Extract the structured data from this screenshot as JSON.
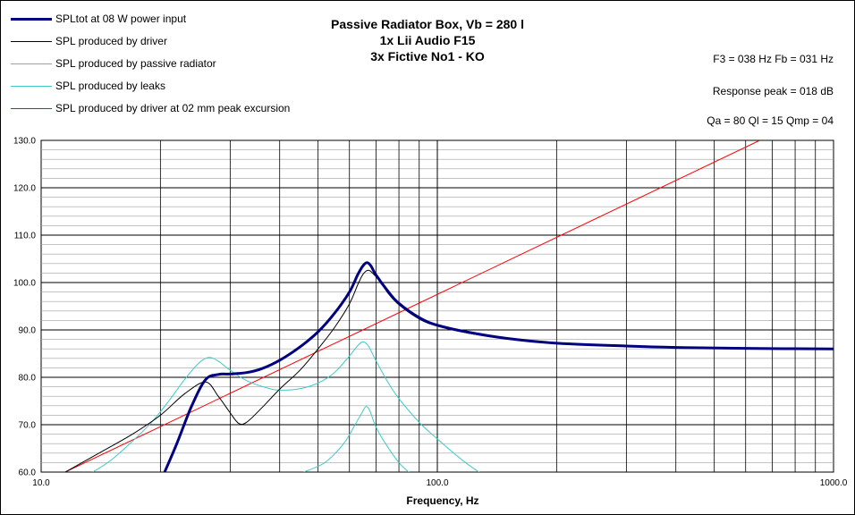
{
  "chart_data": {
    "type": "line",
    "title": [
      "Passive Radiator Box, Vb = 280 l",
      "1x Lii Audio F15",
      "3x Fictive No1 - KO"
    ],
    "info": [
      "F3 = 038 Hz  Fb = 031 Hz",
      "Response  peak = 018 dB",
      "Qa = 80  Ql = 15  Qmp = 04"
    ],
    "xlabel": "Frequency, Hz",
    "ylabel": "",
    "x_scale": "log",
    "xlim": [
      10,
      1000
    ],
    "ylim": [
      60,
      130
    ],
    "x_ticks": [
      "10.0",
      "100.0",
      "1000.0"
    ],
    "y_ticks": [
      "60.0",
      "70.0",
      "80.0",
      "90.0",
      "100.0",
      "110.0",
      "120.0",
      "130.0"
    ],
    "grid": true,
    "legend_position": "top-left",
    "series": [
      {
        "name": "SPLtot at 08 W power input",
        "color": "#000080",
        "width": 3,
        "points": [
          [
            20.5,
            60
          ],
          [
            22,
            66
          ],
          [
            24,
            74
          ],
          [
            26,
            79.5
          ],
          [
            28,
            80.6
          ],
          [
            30,
            80.7
          ],
          [
            33,
            81
          ],
          [
            36,
            81.8
          ],
          [
            40,
            83.6
          ],
          [
            45,
            86.4
          ],
          [
            50,
            89.6
          ],
          [
            55,
            93.5
          ],
          [
            60,
            98
          ],
          [
            63,
            101.7
          ],
          [
            65,
            103.6
          ],
          [
            66.5,
            104.2
          ],
          [
            68,
            103.5
          ],
          [
            70,
            101.6
          ],
          [
            75,
            98.2
          ],
          [
            80,
            95.6
          ],
          [
            90,
            92.6
          ],
          [
            100,
            91
          ],
          [
            120,
            89.5
          ],
          [
            150,
            88.2
          ],
          [
            200,
            87.2
          ],
          [
            300,
            86.6
          ],
          [
            400,
            86.3
          ],
          [
            600,
            86.1
          ],
          [
            1000,
            86
          ]
        ]
      },
      {
        "name": "SPL produced by driver",
        "color": "#000000",
        "width": 1,
        "points": [
          [
            11.5,
            60
          ],
          [
            14,
            64
          ],
          [
            17,
            68
          ],
          [
            20,
            72
          ],
          [
            23,
            76.5
          ],
          [
            26,
            79
          ],
          [
            28,
            76
          ],
          [
            30,
            72.5
          ],
          [
            31.5,
            70.3
          ],
          [
            33,
            70.5
          ],
          [
            36,
            73.5
          ],
          [
            40,
            77.5
          ],
          [
            45,
            81.5
          ],
          [
            50,
            86
          ],
          [
            55,
            90.5
          ],
          [
            60,
            95.5
          ],
          [
            63,
            99.6
          ],
          [
            65,
            101.8
          ],
          [
            67,
            102.6
          ],
          [
            69,
            101.8
          ],
          [
            72,
            100
          ],
          [
            75,
            97.8
          ],
          [
            80,
            95.3
          ],
          [
            90,
            92.3
          ],
          [
            100,
            90.8
          ],
          [
            120,
            89.3
          ],
          [
            150,
            88.1
          ],
          [
            200,
            87.2
          ],
          [
            300,
            86.5
          ],
          [
            500,
            86.2
          ],
          [
            1000,
            86
          ]
        ]
      },
      {
        "name": "SPL produced by passive radiator",
        "color": "#40C8C8",
        "width": 1,
        "points": [
          [
            13.5,
            60
          ],
          [
            15,
            62.5
          ],
          [
            17,
            66.5
          ],
          [
            19,
            70.5
          ],
          [
            21,
            75
          ],
          [
            23,
            79.5
          ],
          [
            25,
            83
          ],
          [
            26.5,
            84.2
          ],
          [
            28,
            83.4
          ],
          [
            30,
            81.5
          ],
          [
            33,
            79.3
          ],
          [
            37,
            77.8
          ],
          [
            40,
            77.3
          ],
          [
            45,
            77.6
          ],
          [
            50,
            78.8
          ],
          [
            55,
            81
          ],
          [
            60,
            84.5
          ],
          [
            63,
            86.7
          ],
          [
            65,
            87.5
          ],
          [
            67,
            86.6
          ],
          [
            70,
            83.5
          ],
          [
            75,
            79
          ],
          [
            80,
            75.5
          ],
          [
            90,
            70.5
          ],
          [
            100,
            67
          ],
          [
            110,
            64
          ],
          [
            120,
            61.5
          ],
          [
            130,
            59.5
          ]
        ]
      },
      {
        "name": "SPL produced by leaks",
        "color": "#40C8C8",
        "width": 1,
        "points": [
          [
            46,
            60
          ],
          [
            52,
            62
          ],
          [
            58,
            66
          ],
          [
            62,
            70
          ],
          [
            64.5,
            72.5
          ],
          [
            66,
            73.8
          ],
          [
            67.5,
            73
          ],
          [
            70,
            69.5
          ],
          [
            74,
            66
          ],
          [
            80,
            62
          ],
          [
            86,
            59.5
          ]
        ]
      },
      {
        "name": "SPL produced by driver at 02 mm peak excursion",
        "color": "#FF0000",
        "width": 1,
        "points": [
          [
            11.5,
            60
          ],
          [
            651,
            130
          ]
        ]
      }
    ]
  }
}
